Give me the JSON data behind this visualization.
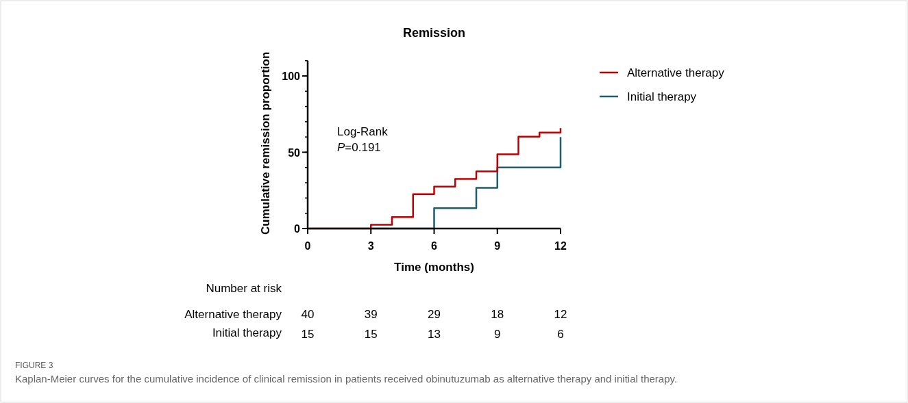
{
  "chart_data": {
    "type": "step",
    "title": "Remission",
    "xlabel": "Time (months)",
    "ylabel": "Cumulative remission proportion",
    "xlim": [
      0,
      12
    ],
    "xticks": [
      0,
      3,
      6,
      9,
      12
    ],
    "ylim": [
      0,
      110
    ],
    "yticks": [
      0,
      50,
      100
    ],
    "legend": "right",
    "grid": false,
    "series": [
      {
        "name": "Alternative therapy",
        "color": "#c00000",
        "x": [
          0,
          3,
          4,
          5,
          6,
          7,
          8,
          9,
          10,
          11,
          12
        ],
        "values": [
          0,
          2.5,
          7.5,
          22.5,
          27.5,
          32.5,
          37.5,
          48.6,
          60.2,
          62.9,
          65.8
        ]
      },
      {
        "name": "Initial therapy",
        "color": "#1b5e6e",
        "x": [
          3,
          6,
          8,
          9,
          12
        ],
        "values": [
          0,
          13.3,
          26.7,
          40,
          60
        ]
      }
    ],
    "annotations": [
      "Log-Rank",
      "P=0.191",
      "Number at risk",
      "Alternative therapy",
      "40",
      "39",
      "29",
      "18",
      "12",
      "Initial therapy",
      "15",
      "15",
      "13",
      "9",
      "6",
      "FIGURE 3",
      "Kaplan-Meier curves for the cumulative incidence of clinical remission in patients received obinutuzumab as alternative therapy and initial therapy."
    ]
  }
}
